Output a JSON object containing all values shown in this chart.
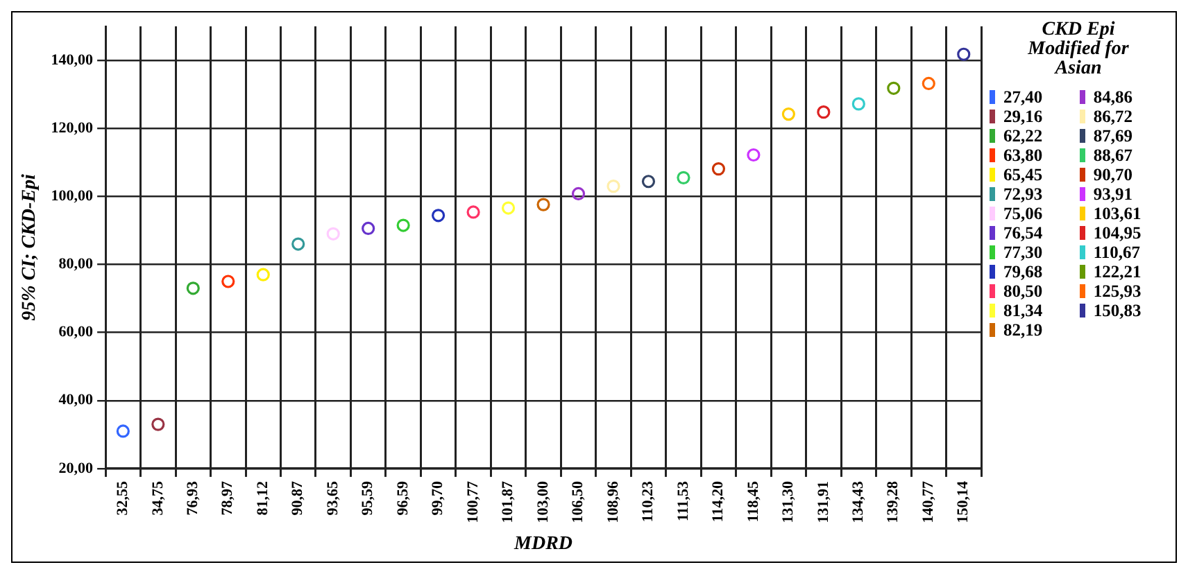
{
  "chart_data": {
    "type": "scatter",
    "xlabel": "MDRD",
    "ylabel": "95% CI; CKD-Epi",
    "legend_title": "CKD Epi Modified for Asian",
    "legend": "right",
    "grid": true,
    "marker": "circle",
    "categories": [
      "32,55",
      "34,75",
      "76,93",
      "78,97",
      "81,12",
      "90,87",
      "93,65",
      "95,59",
      "96,59",
      "99,70",
      "100,77",
      "101,87",
      "103,00",
      "106,50",
      "108,96",
      "110,23",
      "111,53",
      "114,20",
      "118,45",
      "131,30",
      "131,91",
      "134,43",
      "139,28",
      "140,77",
      "150,14"
    ],
    "ylim": [
      20,
      150
    ],
    "yticks": [
      {
        "value": 20,
        "label": "20,00"
      },
      {
        "value": 40,
        "label": "40,00"
      },
      {
        "value": 60,
        "label": "60,00"
      },
      {
        "value": 80,
        "label": "80,00"
      },
      {
        "value": 100,
        "label": "100,00"
      },
      {
        "value": 120,
        "label": "120,00"
      },
      {
        "value": 140,
        "label": "140,00"
      }
    ],
    "series": [
      {
        "name": "27,40",
        "color": "#3366ff",
        "x": [
          "32,55"
        ],
        "values": [
          31
        ]
      },
      {
        "name": "29,16",
        "color": "#993344",
        "x": [
          "34,75"
        ],
        "values": [
          33
        ]
      },
      {
        "name": "62,22",
        "color": "#33aa33",
        "x": [
          "76,93"
        ],
        "values": [
          73
        ]
      },
      {
        "name": "63,80",
        "color": "#ff3300",
        "x": [
          "78,97"
        ],
        "values": [
          75
        ]
      },
      {
        "name": "65,45",
        "color": "#ffee00",
        "x": [
          "81,12"
        ],
        "values": [
          77
        ]
      },
      {
        "name": "72,93",
        "color": "#339999",
        "x": [
          "90,87"
        ],
        "values": [
          86
        ]
      },
      {
        "name": "75,06",
        "color": "#ffccff",
        "x": [
          "93,65"
        ],
        "values": [
          89
        ]
      },
      {
        "name": "76,54",
        "color": "#6633cc",
        "x": [
          "95,59"
        ],
        "values": [
          90.6
        ]
      },
      {
        "name": "77,30",
        "color": "#33cc33",
        "x": [
          "96,59"
        ],
        "values": [
          91.5
        ]
      },
      {
        "name": "79,68",
        "color": "#2233bb",
        "x": [
          "99,70"
        ],
        "values": [
          94.4
        ]
      },
      {
        "name": "80,50",
        "color": "#ff3366",
        "x": [
          "100,77"
        ],
        "values": [
          95.4
        ]
      },
      {
        "name": "81,34",
        "color": "#ffff33",
        "x": [
          "101,87"
        ],
        "values": [
          96.6
        ]
      },
      {
        "name": "82,19",
        "color": "#cc6600",
        "x": [
          "103,00"
        ],
        "values": [
          97.6
        ]
      },
      {
        "name": "84,86",
        "color": "#9933cc",
        "x": [
          "106,50"
        ],
        "values": [
          100.8
        ]
      },
      {
        "name": "86,72",
        "color": "#ffeeaa",
        "x": [
          "108,96"
        ],
        "values": [
          103
        ]
      },
      {
        "name": "87,69",
        "color": "#334466",
        "x": [
          "110,23"
        ],
        "values": [
          104.4
        ]
      },
      {
        "name": "88,67",
        "color": "#33cc66",
        "x": [
          "111,53"
        ],
        "values": [
          105.5
        ]
      },
      {
        "name": "90,70",
        "color": "#cc3300",
        "x": [
          "114,20"
        ],
        "values": [
          108.1
        ]
      },
      {
        "name": "93,91",
        "color": "#cc33ff",
        "x": [
          "118,45"
        ],
        "values": [
          112.2
        ]
      },
      {
        "name": "103,61",
        "color": "#ffcc00",
        "x": [
          "131,30"
        ],
        "values": [
          124.2
        ]
      },
      {
        "name": "104,95",
        "color": "#dd2222",
        "x": [
          "131,91"
        ],
        "values": [
          124.8
        ]
      },
      {
        "name": "110,67",
        "color": "#33cccc",
        "x": [
          "134,43"
        ],
        "values": [
          127.2
        ]
      },
      {
        "name": "122,21",
        "color": "#669900",
        "x": [
          "139,28"
        ],
        "values": [
          131.8
        ]
      },
      {
        "name": "125,93",
        "color": "#ff6600",
        "x": [
          "140,77"
        ],
        "values": [
          133.2
        ]
      },
      {
        "name": "150,83",
        "color": "#333399",
        "x": [
          "150,14"
        ],
        "values": [
          141.8
        ]
      }
    ]
  }
}
